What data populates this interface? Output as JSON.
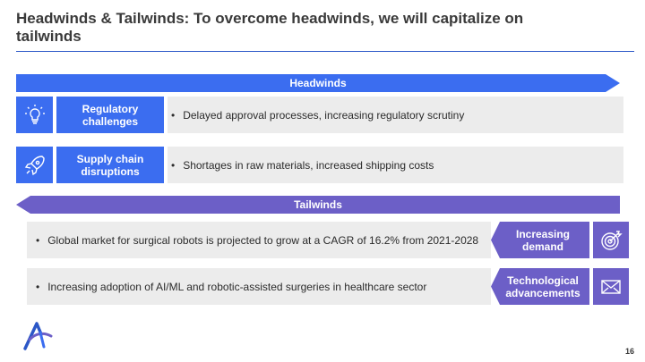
{
  "title": "Headwinds & Tailwinds: To overcome headwinds, we will capitalize on tailwinds",
  "headwinds": {
    "banner": "Headwinds",
    "items": [
      {
        "icon": "lightbulb-icon",
        "label": "Regulatory challenges",
        "text": "Delayed approval processes, increasing regulatory scrutiny"
      },
      {
        "icon": "rocket-icon",
        "label": "Supply chain disruptions",
        "text": "Shortages in raw materials, increased shipping costs"
      }
    ]
  },
  "tailwinds": {
    "banner": "Tailwinds",
    "items": [
      {
        "icon": "target-icon",
        "label": "Increasing demand",
        "text": "Global market for surgical robots is projected to grow at a CAGR of 16.2% from 2021-2028"
      },
      {
        "icon": "envelope-icon",
        "label": "Technological advancements",
        "text": "Increasing adoption of AI/ML and robotic-assisted surgeries in healthcare sector"
      }
    ]
  },
  "bullet_char": "•",
  "page_number": "16",
  "colors": {
    "blue": "#3b6df0",
    "purple": "#6c5fc7",
    "gray": "#ececec"
  }
}
